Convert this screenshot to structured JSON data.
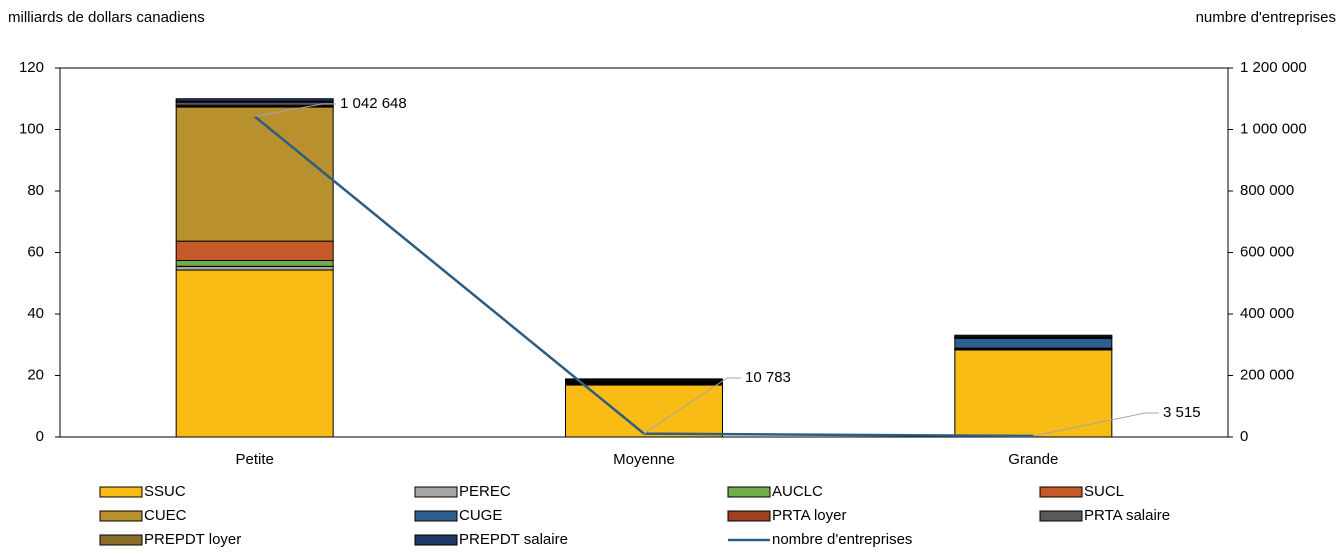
{
  "chart_data": {
    "type": "stacked_bar_line",
    "y_label": "milliards de dollars canadiens",
    "y2_label": "numbre d'entreprises",
    "categories": [
      "Petite",
      "Moyenne",
      "Grande"
    ],
    "ylim": [
      0,
      120
    ],
    "yticks": [
      0,
      20,
      40,
      60,
      80,
      100,
      120
    ],
    "y2lim": [
      0,
      1200000
    ],
    "y2ticks": [
      {
        "value": 0,
        "label": "0"
      },
      {
        "value": 200000,
        "label": "200 000"
      },
      {
        "value": 400000,
        "label": "400 000"
      },
      {
        "value": 600000,
        "label": "600 000"
      },
      {
        "value": 800000,
        "label": "800 000"
      },
      {
        "value": 1000000,
        "label": "1 000 000"
      },
      {
        "value": 1200000,
        "label": "1 200 000"
      }
    ],
    "series": [
      {
        "name": "SSUC",
        "color": "#f9bc15",
        "values": [
          54.3,
          16.9,
          28.3
        ]
      },
      {
        "name": "PEREC",
        "color": "#a6a6a6",
        "values": [
          1.2,
          0.3,
          0.2
        ]
      },
      {
        "name": "AUCLC",
        "color": "#70ad47",
        "values": [
          1.9,
          0.1,
          0.1
        ]
      },
      {
        "name": "SUCL",
        "color": "#c55a28",
        "values": [
          6.3,
          0.2,
          0.1
        ]
      },
      {
        "name": "CUEC",
        "color": "#b8902e",
        "values": [
          43.6,
          0.3,
          0.2
        ]
      },
      {
        "name": "CUGE",
        "color": "#2f5f8f",
        "values": [
          0.2,
          0.3,
          3.2
        ]
      },
      {
        "name": "PRTA loyer",
        "color": "#a0401e",
        "values": [
          0.4,
          0.1,
          0.1
        ]
      },
      {
        "name": "PRTA salaire",
        "color": "#595959",
        "values": [
          1.0,
          0.4,
          0.3
        ]
      },
      {
        "name": "PREPDT loyer",
        "color": "#8a6d2a",
        "values": [
          0.3,
          0.1,
          0.1
        ]
      },
      {
        "name": "PREPDT salaire",
        "color": "#1f3864",
        "values": [
          0.8,
          0.2,
          0.5
        ]
      }
    ],
    "line_series": {
      "name": "nombre d'entreprises",
      "color": "#2e5d82",
      "axis": "y2",
      "values": [
        1042648,
        10783,
        3515
      ],
      "value_labels": [
        "1 042 648",
        "10 783",
        "3 515"
      ]
    }
  }
}
